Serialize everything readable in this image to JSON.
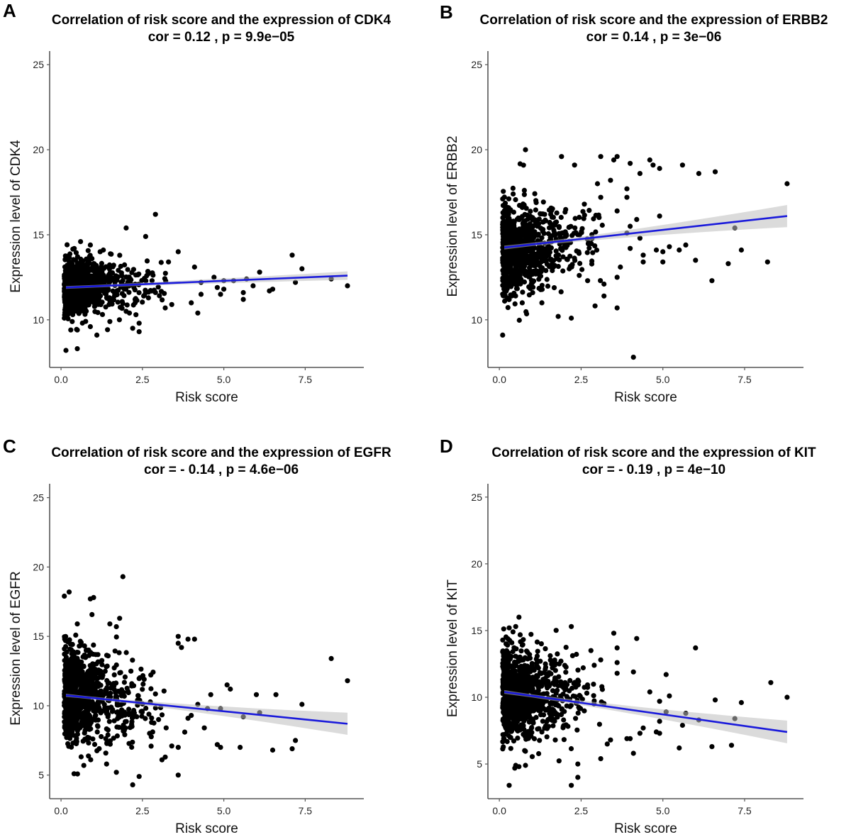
{
  "chart_data": [
    {
      "id": "A",
      "type": "scatter",
      "panel_label": "A",
      "title": "Correlation of risk score and the expression of CDK4",
      "subtitle": "cor = 0.12 , p = 9.9e−05",
      "xlabel": "Risk score",
      "ylabel": "Expression level of CDK4",
      "xlim": [
        -0.35,
        9.3
      ],
      "ylim": [
        7.2,
        25.8
      ],
      "xticks": [
        0.0,
        2.5,
        5.0,
        7.5
      ],
      "xtick_labels": [
        "0.0",
        "2.5",
        "5.0",
        "7.5"
      ],
      "yticks": [
        10,
        15,
        20,
        25
      ],
      "ytick_labels": [
        "10",
        "15",
        "20",
        "25"
      ],
      "grid": false,
      "fit_line": {
        "x": [
          0.15,
          8.8
        ],
        "y": [
          11.9,
          12.6
        ],
        "ci_halfwidth_end": [
          0.08,
          0.25
        ],
        "color": "#1a1adb"
      },
      "cluster": {
        "center_y": 12.0,
        "spread_y": 0.75,
        "n": 900
      },
      "outliers": [
        [
          0.15,
          8.2
        ],
        [
          0.5,
          8.3
        ],
        [
          0.1,
          10.1
        ],
        [
          0.3,
          9.4
        ],
        [
          0.5,
          9.4
        ],
        [
          1.1,
          9.1
        ],
        [
          0.9,
          9.6
        ],
        [
          1.5,
          9.9
        ],
        [
          2.2,
          9.5
        ],
        [
          2.4,
          9.3
        ],
        [
          2.4,
          9.8
        ],
        [
          2.1,
          10.4
        ],
        [
          2.3,
          10.3
        ],
        [
          2.0,
          10.5
        ],
        [
          2.0,
          15.4
        ],
        [
          2.9,
          16.2
        ],
        [
          2.6,
          14.9
        ],
        [
          0.6,
          14.6
        ],
        [
          0.9,
          14.4
        ],
        [
          1.3,
          14.1
        ],
        [
          1.2,
          14.0
        ],
        [
          3.6,
          14.0
        ],
        [
          4.1,
          13.1
        ],
        [
          3.3,
          13.4
        ],
        [
          3.2,
          10.7
        ],
        [
          3.4,
          10.9
        ],
        [
          4.2,
          10.4
        ],
        [
          4.0,
          11.0
        ],
        [
          4.3,
          11.5
        ],
        [
          4.3,
          12.2
        ],
        [
          4.7,
          12.5
        ],
        [
          5.0,
          12.3
        ],
        [
          5.3,
          12.3
        ],
        [
          5.0,
          11.8
        ],
        [
          5.6,
          11.2
        ],
        [
          5.6,
          11.6
        ],
        [
          5.9,
          12.0
        ],
        [
          5.7,
          12.4
        ],
        [
          6.1,
          12.8
        ],
        [
          6.4,
          11.7
        ],
        [
          6.5,
          11.8
        ],
        [
          7.1,
          13.8
        ],
        [
          7.4,
          13.0
        ],
        [
          7.2,
          12.2
        ],
        [
          8.3,
          12.4
        ],
        [
          8.8,
          12.0
        ],
        [
          4.8,
          11.9
        ],
        [
          4.9,
          11.5
        ]
      ]
    },
    {
      "id": "B",
      "type": "scatter",
      "panel_label": "B",
      "title": "Correlation of risk score and the expression of ERBB2",
      "subtitle": "cor = 0.14 , p = 3e−06",
      "xlabel": "Risk score",
      "ylabel": "Expression level of ERBB2",
      "xlim": [
        -0.35,
        9.3
      ],
      "ylim": [
        7.2,
        25.8
      ],
      "xticks": [
        0.0,
        2.5,
        5.0,
        7.5
      ],
      "xtick_labels": [
        "0.0",
        "2.5",
        "5.0",
        "7.5"
      ],
      "yticks": [
        10,
        15,
        20,
        25
      ],
      "ytick_labels": [
        "10",
        "15",
        "20",
        "25"
      ],
      "grid": false,
      "fit_line": {
        "x": [
          0.15,
          8.8
        ],
        "y": [
          14.25,
          16.1
        ],
        "ci_halfwidth_end": [
          0.1,
          0.65
        ],
        "color": "#1a1adb"
      },
      "cluster": {
        "center_y": 14.3,
        "spread_y": 1.3,
        "n": 900
      },
      "outliers": [
        [
          0.1,
          9.1
        ],
        [
          4.1,
          7.8
        ],
        [
          1.8,
          10.2
        ],
        [
          2.2,
          10.1
        ],
        [
          3.6,
          10.7
        ],
        [
          0.3,
          11.2
        ],
        [
          0.7,
          11.0
        ],
        [
          1.3,
          11.0
        ],
        [
          0.8,
          20.0
        ],
        [
          1.9,
          19.6
        ],
        [
          2.3,
          19.1
        ],
        [
          3.1,
          19.6
        ],
        [
          3.6,
          19.6
        ],
        [
          3.5,
          19.4
        ],
        [
          4.0,
          19.2
        ],
        [
          4.6,
          19.4
        ],
        [
          4.7,
          19.1
        ],
        [
          4.9,
          18.9
        ],
        [
          5.6,
          19.1
        ],
        [
          6.1,
          18.6
        ],
        [
          6.6,
          18.7
        ],
        [
          8.8,
          18.0
        ],
        [
          4.3,
          18.6
        ],
        [
          3.4,
          18.2
        ],
        [
          3.0,
          18.0
        ],
        [
          3.9,
          17.7
        ],
        [
          3.9,
          17.2
        ],
        [
          3.1,
          17.2
        ],
        [
          2.6,
          16.8
        ],
        [
          3.6,
          16.4
        ],
        [
          4.2,
          15.9
        ],
        [
          4.9,
          16.1
        ],
        [
          4.0,
          15.5
        ],
        [
          7.2,
          15.4
        ],
        [
          3.9,
          15.1
        ],
        [
          4.3,
          14.8
        ],
        [
          4.0,
          14.2
        ],
        [
          4.4,
          13.8
        ],
        [
          4.4,
          13.4
        ],
        [
          4.8,
          14.1
        ],
        [
          5.0,
          14.0
        ],
        [
          5.2,
          14.3
        ],
        [
          5.5,
          14.1
        ],
        [
          5.7,
          14.4
        ],
        [
          5.0,
          13.4
        ],
        [
          6.0,
          13.5
        ],
        [
          7.0,
          13.3
        ],
        [
          7.4,
          14.1
        ],
        [
          8.2,
          13.4
        ],
        [
          6.5,
          12.3
        ],
        [
          3.2,
          12.1
        ],
        [
          3.2,
          11.4
        ],
        [
          2.7,
          12.3
        ],
        [
          3.6,
          12.5
        ],
        [
          3.7,
          13.1
        ]
      ]
    },
    {
      "id": "C",
      "type": "scatter",
      "panel_label": "C",
      "title": "Correlation of risk score and the expression of EGFR",
      "subtitle": "cor = - 0.14 , p = 4.6e−06",
      "xlabel": "Risk score",
      "ylabel": "Expression level of EGFR",
      "xlim": [
        -0.35,
        9.3
      ],
      "ylim": [
        3.3,
        26.0
      ],
      "xticks": [
        0.0,
        2.5,
        5.0,
        7.5
      ],
      "xtick_labels": [
        "0.0",
        "2.5",
        "5.0",
        "7.5"
      ],
      "yticks": [
        5,
        10,
        15,
        20,
        25
      ],
      "ytick_labels": [
        "5",
        "10",
        "15",
        "20",
        "25"
      ],
      "grid": false,
      "fit_line": {
        "x": [
          0.15,
          8.8
        ],
        "y": [
          10.75,
          8.7
        ],
        "ci_halfwidth_end": [
          0.1,
          0.8
        ],
        "color": "#1a1adb"
      },
      "cluster": {
        "center_y": 10.7,
        "spread_y": 1.7,
        "n": 900
      },
      "outliers": [
        [
          0.1,
          17.9
        ],
        [
          0.25,
          18.2
        ],
        [
          0.9,
          17.7
        ],
        [
          1.0,
          17.8
        ],
        [
          1.9,
          19.3
        ],
        [
          1.8,
          16.3
        ],
        [
          0.5,
          15.9
        ],
        [
          1.5,
          15.9
        ],
        [
          1.7,
          15.7
        ],
        [
          3.6,
          15.0
        ],
        [
          3.9,
          14.8
        ],
        [
          4.1,
          14.8
        ],
        [
          3.6,
          14.5
        ],
        [
          3.7,
          14.2
        ],
        [
          8.3,
          13.4
        ],
        [
          8.8,
          11.8
        ],
        [
          5.1,
          11.5
        ],
        [
          5.2,
          11.2
        ],
        [
          6.0,
          10.8
        ],
        [
          6.6,
          10.8
        ],
        [
          7.4,
          10.1
        ],
        [
          4.6,
          10.8
        ],
        [
          4.2,
          10.1
        ],
        [
          4.5,
          9.8
        ],
        [
          4.9,
          9.8
        ],
        [
          5.6,
          9.2
        ],
        [
          6.1,
          9.5
        ],
        [
          4.4,
          8.4
        ],
        [
          4.8,
          7.2
        ],
        [
          4.9,
          7.0
        ],
        [
          5.5,
          7.0
        ],
        [
          6.5,
          6.8
        ],
        [
          7.1,
          6.9
        ],
        [
          7.2,
          7.5
        ],
        [
          3.6,
          7.0
        ],
        [
          3.4,
          7.1
        ],
        [
          3.1,
          6.1
        ],
        [
          3.2,
          6.3
        ],
        [
          3.6,
          5.0
        ],
        [
          2.2,
          4.3
        ],
        [
          2.4,
          4.9
        ],
        [
          1.7,
          5.2
        ],
        [
          0.4,
          5.1
        ],
        [
          0.7,
          5.7
        ],
        [
          1.4,
          5.8
        ],
        [
          3.8,
          8.1
        ],
        [
          3.9,
          9.1
        ],
        [
          4.0,
          9.3
        ]
      ]
    },
    {
      "id": "D",
      "type": "scatter",
      "panel_label": "D",
      "title": "Correlation of risk score and the expression of KIT",
      "subtitle": "cor = - 0.19 , p = 4e−10",
      "xlabel": "Risk score",
      "ylabel": "Expression level of KIT",
      "xlim": [
        -0.35,
        9.3
      ],
      "ylim": [
        2.4,
        26.0
      ],
      "xticks": [
        0.0,
        2.5,
        5.0,
        7.5
      ],
      "xtick_labels": [
        "0.0",
        "2.5",
        "5.0",
        "7.5"
      ],
      "yticks": [
        5,
        10,
        15,
        20,
        25
      ],
      "ytick_labels": [
        "5",
        "10",
        "15",
        "20",
        "25"
      ],
      "grid": false,
      "fit_line": {
        "x": [
          0.15,
          8.8
        ],
        "y": [
          10.4,
          7.4
        ],
        "ci_halfwidth_end": [
          0.12,
          0.85
        ],
        "color": "#1a1adb"
      },
      "cluster": {
        "center_y": 10.2,
        "spread_y": 1.8,
        "n": 900
      },
      "outliers": [
        [
          0.6,
          16.0
        ],
        [
          0.3,
          15.2
        ],
        [
          0.5,
          15.3
        ],
        [
          2.2,
          15.3
        ],
        [
          3.5,
          14.8
        ],
        [
          4.2,
          14.4
        ],
        [
          3.6,
          13.7
        ],
        [
          6.0,
          13.7
        ],
        [
          2.8,
          13.5
        ],
        [
          3.1,
          12.8
        ],
        [
          3.6,
          12.6
        ],
        [
          2.9,
          12.4
        ],
        [
          4.1,
          11.9
        ],
        [
          5.1,
          11.7
        ],
        [
          3.6,
          11.8
        ],
        [
          8.3,
          11.1
        ],
        [
          4.6,
          10.4
        ],
        [
          5.2,
          10.1
        ],
        [
          8.8,
          10.0
        ],
        [
          6.6,
          9.8
        ],
        [
          7.4,
          9.6
        ],
        [
          4.9,
          9.7
        ],
        [
          5.1,
          8.9
        ],
        [
          5.7,
          8.8
        ],
        [
          6.1,
          8.3
        ],
        [
          7.2,
          8.4
        ],
        [
          4.9,
          8.2
        ],
        [
          5.6,
          7.9
        ],
        [
          4.8,
          7.4
        ],
        [
          4.9,
          7.3
        ],
        [
          5.5,
          6.2
        ],
        [
          6.5,
          6.3
        ],
        [
          7.1,
          6.4
        ],
        [
          4.1,
          5.8
        ],
        [
          3.1,
          5.4
        ],
        [
          2.4,
          5.0
        ],
        [
          2.4,
          4.0
        ],
        [
          2.2,
          3.4
        ],
        [
          0.3,
          3.4
        ],
        [
          0.6,
          4.8
        ],
        [
          0.5,
          4.9
        ],
        [
          0.8,
          4.9
        ],
        [
          3.9,
          6.9
        ],
        [
          4.0,
          6.9
        ],
        [
          3.4,
          6.8
        ],
        [
          3.3,
          6.5
        ],
        [
          4.3,
          7.3
        ],
        [
          4.4,
          7.7
        ]
      ]
    }
  ]
}
